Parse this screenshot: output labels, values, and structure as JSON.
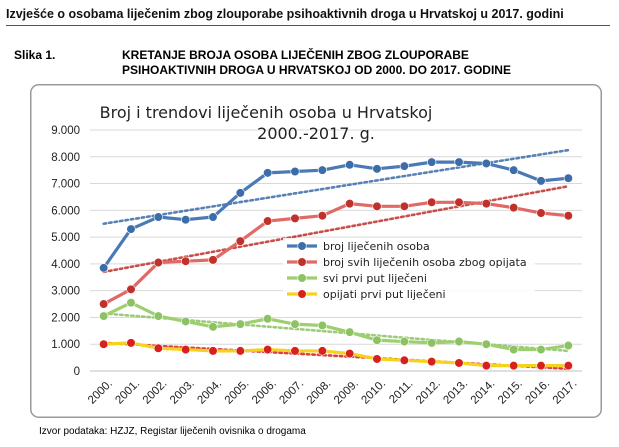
{
  "header": "Izvješće o osobama liječenim zbog zlouporabe psihoaktivnih droga u Hrvatskoj u 2017. godini",
  "figure": {
    "label": "Slika 1.",
    "title_line1": "KRETANJE BROJA OSOBA LIJEČENIH ZBOG ZLOUPORABE",
    "title_line2": "PSIHOAKTIVNIH DROGA U HRVATSKOJ OD 2000. DO 2017. GODINE"
  },
  "source": "Izvor podataka: HZJZ, Registar liječenih ovisnika o drogama",
  "chart_data": {
    "type": "line",
    "title_line1": "Broj i trendovi liječenih osoba u Hrvatskoj",
    "title_line2": "2000.-2017. g.",
    "categories": [
      "2000.",
      "2001.",
      "2002.",
      "2003.",
      "2004.",
      "2005.",
      "2006.",
      "2007.",
      "2008.",
      "2009.",
      "2010.",
      "2011.",
      "2012.",
      "2013.",
      "2014.",
      "2015.",
      "2016.",
      "2017."
    ],
    "y_ticks": [
      "0",
      "1.000",
      "2.000",
      "3.000",
      "4.000",
      "5.000",
      "6.000",
      "7.000",
      "8.000",
      "9.000"
    ],
    "ylim": [
      0,
      9000
    ],
    "grid": true,
    "legend_position": "center-right",
    "series": [
      {
        "name": "broj liječenih osoba",
        "color": "#4a7ab5",
        "marker": "#3d6da8",
        "values": [
          3850,
          5300,
          5750,
          5650,
          5750,
          6650,
          7400,
          7450,
          7500,
          7700,
          7550,
          7650,
          7800,
          7800,
          7750,
          7500,
          7100,
          7200
        ],
        "trend": [
          5500,
          8250
        ]
      },
      {
        "name": "broj svih liječenih osoba zbog opijata",
        "color": "#e06a66",
        "marker": "#c0312b",
        "values": [
          2500,
          3050,
          4050,
          4100,
          4150,
          4850,
          5600,
          5700,
          5800,
          6250,
          6150,
          6150,
          6300,
          6300,
          6250,
          6100,
          5900,
          5800
        ],
        "trend": [
          3700,
          6900
        ]
      },
      {
        "name": "svi prvi put liječeni",
        "color": "#9dcf6f",
        "marker": "#8cc263",
        "values": [
          2050,
          2550,
          2050,
          1850,
          1650,
          1750,
          1950,
          1750,
          1700,
          1450,
          1150,
          1100,
          1050,
          1100,
          1000,
          800,
          800,
          950
        ],
        "trend": [
          2150,
          750
        ]
      },
      {
        "name": "opijati prvi put liječeni",
        "color": "#f5d21e",
        "marker": "#d9211a",
        "values": [
          1000,
          1050,
          850,
          800,
          750,
          750,
          800,
          750,
          750,
          650,
          450,
          400,
          350,
          300,
          200,
          200,
          200,
          200
        ],
        "trend": [
          1050,
          80
        ]
      }
    ]
  }
}
